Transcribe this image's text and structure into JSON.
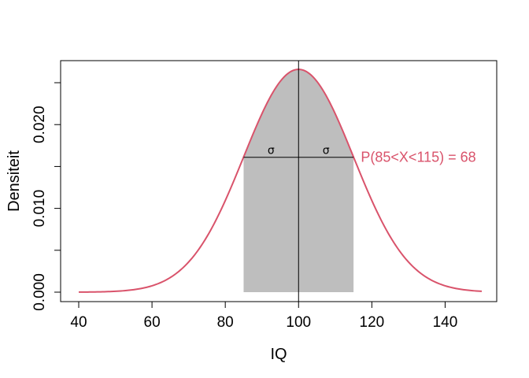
{
  "chart_data": {
    "type": "area",
    "title": "",
    "xlabel": "IQ",
    "ylabel": "Densiteit",
    "xlim": [
      40,
      150
    ],
    "ylim": [
      0,
      0.0266
    ],
    "x_ticks": [
      40,
      60,
      80,
      100,
      120,
      140
    ],
    "y_ticks": [
      0.0,
      0.005,
      0.01,
      0.015,
      0.02,
      0.025
    ],
    "y_tick_labels": [
      "0.000",
      "",
      "0.010",
      "",
      "0.020",
      ""
    ],
    "grid": false,
    "legend": "none",
    "curve": {
      "distribution": "normal",
      "mean": 100,
      "sd": 15,
      "x_range": [
        40,
        150
      ],
      "color": "#D9536B"
    },
    "shaded_region": {
      "from": 85,
      "to": 115,
      "color": "#BEBEBE"
    },
    "mean_line": {
      "x": 100,
      "color": "#000000"
    },
    "sd_segment": {
      "from": 85,
      "to": 115,
      "y": 0.0161,
      "labels": [
        "σ",
        "σ"
      ],
      "label_x": [
        92.5,
        107.5
      ]
    },
    "annotation": {
      "text": "P(85<X<115) = 68",
      "x": 117,
      "y": 0.0161,
      "color": "#D9536B"
    }
  }
}
